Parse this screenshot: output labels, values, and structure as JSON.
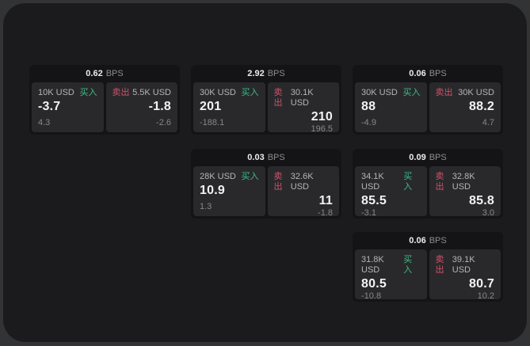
{
  "labels": {
    "bps_unit": "BPS",
    "buy": "买入",
    "sell": "卖出"
  },
  "colors": {
    "background": "#323334",
    "panel": "#1b1b1d",
    "card": "#141416",
    "pane": "#29292c",
    "buy_green": "#3dbd85",
    "sell_red": "#cf5268",
    "price_text": "#f2f2f2",
    "muted_text": "#878787"
  },
  "cards": [
    {
      "bps": "0.62",
      "buy": {
        "amount": "10K USD",
        "value": "-3.7",
        "sub": "4.3"
      },
      "sell": {
        "amount": "5.5K USD",
        "value": "-1.8",
        "sub": "-2.6"
      }
    },
    {
      "bps": "2.92",
      "buy": {
        "amount": "30K USD",
        "value": "201",
        "sub": "-188.1"
      },
      "sell": {
        "amount": "30.1K USD",
        "value": "210",
        "sub": "196.5"
      }
    },
    {
      "bps": "0.06",
      "buy": {
        "amount": "30K USD",
        "value": "88",
        "sub": "-4.9"
      },
      "sell": {
        "amount": "30K USD",
        "value": "88.2",
        "sub": "4.7"
      }
    },
    {
      "bps": "0.03",
      "buy": {
        "amount": "28K USD",
        "value": "10.9",
        "sub": "1.3"
      },
      "sell": {
        "amount": "32.6K USD",
        "value": "11",
        "sub": "-1.8"
      }
    },
    {
      "bps": "0.09",
      "buy": {
        "amount": "34.1K USD",
        "value": "85.5",
        "sub": "-3.1"
      },
      "sell": {
        "amount": "32.8K USD",
        "value": "85.8",
        "sub": "3.0"
      }
    },
    {
      "bps": "0.06",
      "buy": {
        "amount": "31.8K USD",
        "value": "80.5",
        "sub": "-10.8"
      },
      "sell": {
        "amount": "39.1K USD",
        "value": "80.7",
        "sub": "10.2"
      }
    }
  ]
}
